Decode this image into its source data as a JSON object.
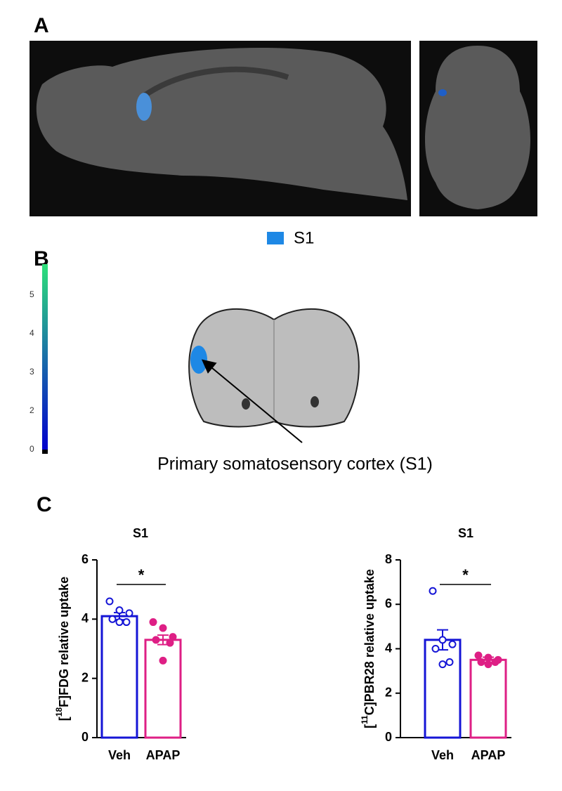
{
  "panels": {
    "a": "A",
    "b": "B",
    "c": "C"
  },
  "legend": {
    "label": "S1",
    "color": "#1e88e5"
  },
  "colorbar": {
    "ticks": [
      "5",
      "4",
      "3",
      "2",
      "0"
    ]
  },
  "annotation": "Primary somatosensory cortex (S1)",
  "chart_data": [
    {
      "type": "bar",
      "title": "S1",
      "y_label": {
        "open": "[",
        "sup": "18",
        "rest": "F]FDG relative uptake"
      },
      "ylim": [
        0,
        6
      ],
      "yticks": [
        0,
        2,
        4,
        6
      ],
      "significance": "*",
      "series": [
        {
          "name": "Veh",
          "color": "#1515d6",
          "mean": 4.1,
          "sem": 0.12,
          "points": [
            4.6,
            4.3,
            4.2,
            4.0,
            3.9,
            3.9
          ]
        },
        {
          "name": "APAP",
          "color": "#de1f85",
          "mean": 3.3,
          "sem": 0.16,
          "points": [
            3.9,
            3.7,
            3.4,
            3.3,
            3.2,
            2.6
          ]
        }
      ]
    },
    {
      "type": "bar",
      "title": "S1",
      "y_label": {
        "open": "[",
        "sup": "11",
        "rest": "C]PBR28 relative uptake"
      },
      "ylim": [
        0,
        8
      ],
      "yticks": [
        0,
        2,
        4,
        6,
        8
      ],
      "significance": "*",
      "series": [
        {
          "name": "Veh",
          "color": "#1515d6",
          "mean": 4.4,
          "sem": 0.45,
          "points": [
            6.6,
            4.4,
            4.2,
            4.0,
            3.4,
            3.3
          ]
        },
        {
          "name": "APAP",
          "color": "#de1f85",
          "mean": 3.5,
          "sem": 0.12,
          "points": [
            3.7,
            3.6,
            3.5,
            3.4,
            3.4,
            3.3
          ]
        }
      ]
    }
  ]
}
